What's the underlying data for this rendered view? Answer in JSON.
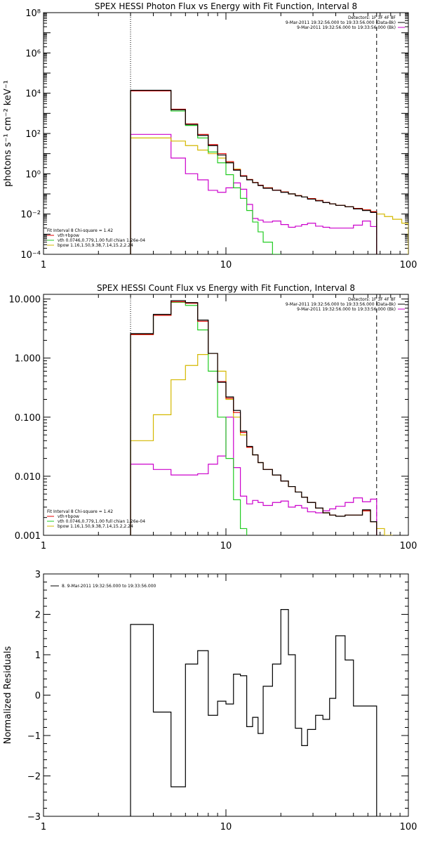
{
  "colors": {
    "data": "#000000",
    "total_fit": "#e00000",
    "thermal": "#22cc22",
    "power_law": "#d4b800",
    "background": "#cc00cc"
  },
  "chart_data": [
    {
      "type": "line",
      "title": "SPEX HESSI Photon Flux vs Energy with Fit Function, Interval 8",
      "xlabel": "",
      "ylabel": "photons s⁻¹ cm⁻² keV⁻¹",
      "xscale": "log",
      "yscale": "log",
      "xlim": [
        1,
        100
      ],
      "ylim": [
        0.0001,
        100000000
      ],
      "grid": false,
      "xticks": [
        "1",
        "10",
        "100"
      ],
      "yticks": [
        "10⁻⁴",
        "10⁻²",
        "10⁰",
        "10²",
        "10⁴",
        "10⁶",
        "10⁸"
      ],
      "vlines": [
        {
          "x": 3.0,
          "style": "dotted"
        },
        {
          "x": 67,
          "style": "dashed"
        }
      ],
      "legend_top": [
        {
          "text": "Detectors: 1F 3F 4F 8F",
          "color": "#000000"
        },
        {
          "text": "9-Mar-2011 19:32:56.000 to 19:33:56.000 (Data-Bk)",
          "color": "#000000"
        },
        {
          "text": "9-Mar-2011 19:32:56.000 to 19:33:56.000 (Bk)",
          "color": "#cc00cc"
        }
      ],
      "legend_bottom": [
        {
          "text": "Fit Interval 8   Chi-square = 1.42",
          "color": "#000000"
        },
        {
          "text": "vth+bpow",
          "color": "#e00000"
        },
        {
          "text": "vth 0.0746,0.779,1.00  full chian 1.26e-04",
          "color": "#22cc22"
        },
        {
          "text": "bpow 1.16,1.50,9.38,7.14,15.2,2.24",
          "color": "#d4b800"
        }
      ],
      "edges": [
        3.0,
        4.0,
        5.0,
        6.0,
        7.0,
        8.0,
        9.0,
        10.0,
        11.0,
        12.0,
        13.0,
        14.0,
        15.0,
        16.0,
        18.0,
        20.0,
        22.0,
        24.0,
        26.0,
        28.0,
        31.0,
        34.0,
        37.0,
        40.0,
        45.0,
        50.0,
        56.0,
        62.0,
        67.0,
        74.0,
        82.0,
        92.0,
        100.0
      ],
      "series": [
        {
          "key": "data",
          "values": [
            14000,
            14000,
            1500,
            280,
            80,
            25,
            8.5,
            3.5,
            1.5,
            0.75,
            0.5,
            0.36,
            0.26,
            0.19,
            0.15,
            0.12,
            0.1,
            0.08,
            0.07,
            0.055,
            0.045,
            0.037,
            0.032,
            0.027,
            0.023,
            0.018,
            0.015,
            0.012
          ]
        },
        {
          "key": "total_fit",
          "values": [
            13000,
            13000,
            1600,
            300,
            90,
            28,
            10,
            4,
            1.6,
            0.8,
            0.52,
            0.37,
            0.27,
            0.2,
            0.155,
            0.125,
            0.1,
            0.083,
            0.07,
            0.058,
            0.047,
            0.038,
            0.032,
            0.027,
            0.023,
            0.019,
            0.016,
            0.013
          ]
        },
        {
          "key": "thermal",
          "values": [
            13000,
            13000,
            1300,
            250,
            60,
            12,
            3.5,
            0.9,
            0.2,
            0.06,
            0.015,
            0.004,
            0.0013,
            0.0004,
            0.0001
          ]
        },
        {
          "key": "power_law",
          "values": [
            60,
            60,
            42,
            25,
            15,
            10,
            6,
            3.6,
            1.7,
            0.8,
            0.52,
            0.37,
            0.27,
            0.2,
            0.155,
            0.125,
            0.1,
            0.083,
            0.07,
            0.058,
            0.047,
            0.038,
            0.032,
            0.027,
            0.023,
            0.019,
            0.016,
            0.013,
            0.01,
            0.0075,
            0.0055,
            0.0035
          ]
        },
        {
          "key": "background",
          "values": [
            90,
            90,
            6,
            1,
            0.5,
            0.15,
            0.12,
            0.2,
            0.35,
            0.17,
            0.03,
            0.006,
            0.005,
            0.004,
            0.0045,
            0.003,
            0.0022,
            0.0025,
            0.003,
            0.0035,
            0.0025,
            0.0022,
            0.002,
            0.002,
            0.002,
            0.0028,
            0.0045,
            0.0024
          ]
        }
      ]
    },
    {
      "type": "line",
      "title": "SPEX HESSI Count Flux vs Energy with Fit Function, Interval 8",
      "xlabel": "",
      "ylabel": "",
      "xscale": "log",
      "yscale": "log",
      "xlim": [
        1,
        100
      ],
      "ylim": [
        0.001,
        12.0
      ],
      "grid": false,
      "xticks": [
        "1",
        "10",
        "100"
      ],
      "yticks": [
        "0.001",
        "0.010",
        "0.100",
        "1.000",
        "10.000"
      ],
      "vlines": [
        {
          "x": 3.0,
          "style": "dotted"
        },
        {
          "x": 67,
          "style": "dashed"
        }
      ],
      "legend_top": [
        {
          "text": "Detectors: 1F 3F 4F 8F",
          "color": "#000000"
        },
        {
          "text": "9-Mar-2011 19:32:56.000 to 19:33:56.000 (Data-Bk)",
          "color": "#000000"
        },
        {
          "text": "9-Mar-2011 19:32:56.000 to 19:33:56.000 (Bk)",
          "color": "#cc00cc"
        }
      ],
      "legend_bottom": [
        {
          "text": "Fit Interval 8   Chi-square = 1.42",
          "color": "#000000"
        },
        {
          "text": "vth+bpow",
          "color": "#e00000"
        },
        {
          "text": "vth 0.0746,0.779,1.00  full chian 1.26e-04",
          "color": "#22cc22"
        },
        {
          "text": "bpow 1.16,1.50,9.38,7.14,15.2,2.24",
          "color": "#d4b800"
        }
      ],
      "edges": [
        3.0,
        4.0,
        5.0,
        6.0,
        7.0,
        8.0,
        9.0,
        10.0,
        11.0,
        12.0,
        13.0,
        14.0,
        15.0,
        16.0,
        18.0,
        20.0,
        22.0,
        24.0,
        26.0,
        28.0,
        31.0,
        34.0,
        37.0,
        40.0,
        45.0,
        50.0,
        56.0,
        62.0,
        67.0,
        74.0,
        82.0,
        92.0,
        100.0
      ],
      "series": [
        {
          "key": "data",
          "values": [
            2.6,
            5.5,
            9.4,
            8.7,
            4.4,
            1.2,
            0.39,
            0.22,
            0.13,
            0.058,
            0.032,
            0.023,
            0.017,
            0.013,
            0.0105,
            0.0083,
            0.0067,
            0.0054,
            0.0044,
            0.0036,
            0.0029,
            0.0024,
            0.0022,
            0.0021,
            0.0022,
            0.0022,
            0.0027,
            0.0017
          ]
        },
        {
          "key": "total_fit",
          "values": [
            2.5,
            5.3,
            9.0,
            8.5,
            4.2,
            1.2,
            0.4,
            0.21,
            0.12,
            0.055,
            0.031,
            0.023,
            0.017,
            0.013,
            0.0105,
            0.0083,
            0.0067,
            0.0054,
            0.0044,
            0.0036,
            0.0029,
            0.0024,
            0.0022,
            0.0021,
            0.0022,
            0.0022,
            0.0026,
            0.0017
          ]
        },
        {
          "key": "thermal",
          "values": [
            2.5,
            5.3,
            8.8,
            7.8,
            3.0,
            0.6,
            0.1,
            0.02,
            0.004,
            0.0013
          ]
        },
        {
          "key": "power_law",
          "values": [
            0.04,
            0.11,
            0.43,
            0.75,
            1.15,
            1.2,
            0.6,
            0.2,
            0.1,
            0.05,
            0.031,
            0.023,
            0.017,
            0.013,
            0.0105,
            0.0083,
            0.0067,
            0.0054,
            0.0044,
            0.0036,
            0.0029,
            0.0024,
            0.0022,
            0.0021,
            0.0022,
            0.0022,
            0.0026,
            0.0017,
            0.0013,
            0.001
          ]
        },
        {
          "key": "background",
          "values": [
            0.016,
            0.013,
            0.0105,
            0.0105,
            0.011,
            0.016,
            0.022,
            0.1,
            0.014,
            0.0046,
            0.0034,
            0.0039,
            0.0036,
            0.0032,
            0.0036,
            0.0038,
            0.003,
            0.0032,
            0.0029,
            0.0025,
            0.0024,
            0.0026,
            0.0028,
            0.0031,
            0.0036,
            0.0043,
            0.0037,
            0.0041
          ]
        }
      ]
    },
    {
      "type": "line",
      "title": "",
      "xlabel": "",
      "ylabel": "Normalized Residuals",
      "xscale": "log",
      "yscale": "linear",
      "xlim": [
        1,
        100
      ],
      "ylim": [
        -3,
        3
      ],
      "grid": false,
      "xticks": [
        "1",
        "10",
        "100"
      ],
      "yticks": [
        "−3",
        "−2",
        "−1",
        "0",
        "1",
        "2",
        "3"
      ],
      "legend_top": [
        {
          "text": "8.  9-Mar-2011 19:32:56.000 to 19:33:56.000",
          "color": "#000000"
        }
      ],
      "edges": [
        3.0,
        4.0,
        5.0,
        6.0,
        7.0,
        8.0,
        9.0,
        10.0,
        11.0,
        12.0,
        13.0,
        14.0,
        15.0,
        16.0,
        18.0,
        20.0,
        22.0,
        24.0,
        26.0,
        28.0,
        31.0,
        34.0,
        37.0,
        40.0,
        45.0,
        50.0,
        56.0,
        62.0,
        67.0
      ],
      "series": [
        {
          "key": "data",
          "values": [
            1.75,
            -0.42,
            -2.27,
            0.77,
            1.1,
            -0.5,
            -0.15,
            -0.22,
            0.52,
            0.48,
            -0.78,
            -0.55,
            -0.95,
            0.22,
            0.77,
            2.12,
            1.0,
            -0.82,
            -1.25,
            -0.85,
            -0.5,
            -0.6,
            -0.08,
            1.47,
            0.87,
            -0.27,
            -0.27,
            -0.27
          ]
        }
      ]
    }
  ]
}
